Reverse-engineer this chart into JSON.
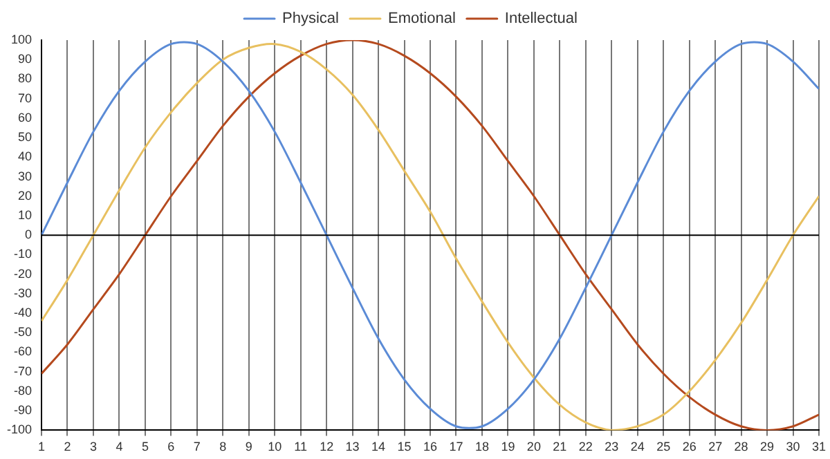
{
  "chart_data": {
    "type": "line",
    "x": [
      1,
      2,
      3,
      4,
      5,
      6,
      7,
      8,
      9,
      10,
      11,
      12,
      13,
      14,
      15,
      16,
      17,
      18,
      19,
      20,
      21,
      22,
      23,
      24,
      25,
      26,
      27,
      28,
      29,
      30,
      31
    ],
    "series": [
      {
        "name": "Physical",
        "color": "#5b8bd6",
        "values": [
          0,
          27,
          53,
          74,
          89,
          98,
          98,
          89,
          74,
          53,
          27,
          0,
          -27,
          -53,
          -74,
          -89,
          -98,
          -98,
          -89,
          -74,
          -53,
          -27,
          0,
          27,
          53,
          74,
          89,
          98,
          98,
          89,
          75
        ]
      },
      {
        "name": "Emotional",
        "color": "#e8c060",
        "values": [
          -44,
          -23,
          0,
          23,
          45,
          63,
          78,
          90,
          96,
          98,
          94,
          85,
          72,
          54,
          33,
          12,
          -12,
          -34,
          -55,
          -73,
          -87,
          -96,
          -100,
          -98,
          -92,
          -80,
          -64,
          -45,
          -23,
          0,
          20
        ]
      },
      {
        "name": "Intellectual",
        "color": "#b54a1e",
        "values": [
          -71,
          -56,
          -38,
          -20,
          0,
          20,
          38,
          56,
          71,
          83,
          92,
          98,
          100,
          98,
          92,
          83,
          71,
          56,
          38,
          20,
          0,
          -20,
          -38,
          -56,
          -71,
          -83,
          -92,
          -98,
          -100,
          -98,
          -92
        ]
      }
    ],
    "xlim": [
      1,
      31
    ],
    "xticks": [
      1,
      2,
      3,
      4,
      5,
      6,
      7,
      8,
      9,
      10,
      11,
      12,
      13,
      14,
      15,
      16,
      17,
      18,
      19,
      20,
      21,
      22,
      23,
      24,
      25,
      26,
      27,
      28,
      29,
      30,
      31
    ],
    "ylim": [
      -100,
      100
    ],
    "yticks": [
      -100,
      -90,
      -80,
      -70,
      -60,
      -50,
      -40,
      -30,
      -20,
      -10,
      0,
      10,
      20,
      30,
      40,
      50,
      60,
      70,
      80,
      90,
      100
    ],
    "grid": "x",
    "legend": "top",
    "marker": "none",
    "line_style": "solid",
    "ref_lines": [
      {
        "axis": "y",
        "value": 0,
        "color": "#000000"
      }
    ]
  }
}
